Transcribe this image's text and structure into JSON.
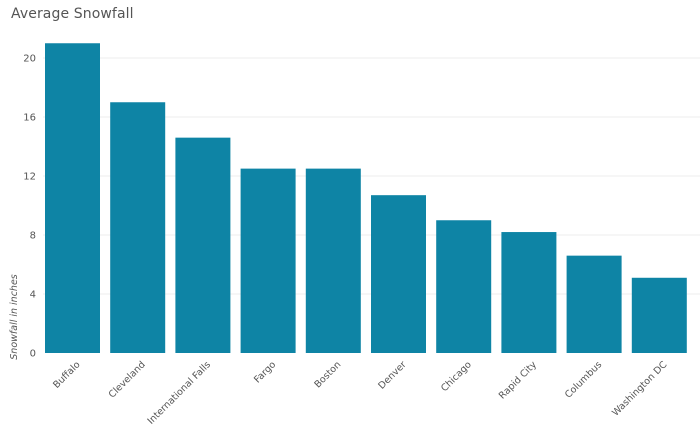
{
  "chart_data": {
    "type": "bar",
    "title": "Average Snowfall",
    "xlabel": "",
    "ylabel": "Snowfall in inches",
    "categories": [
      "Buffalo",
      "Cleveland",
      "International Falls",
      "Fargo",
      "Boston",
      "Denver",
      "Chicago",
      "Rapid City",
      "Columbus",
      "Washington DC"
    ],
    "values": [
      21.0,
      17.0,
      14.6,
      12.5,
      12.5,
      10.7,
      9.0,
      8.2,
      6.6,
      5.1
    ],
    "ylim": [
      0,
      22
    ],
    "yticks": [
      0,
      4,
      8,
      12,
      16,
      20
    ],
    "grid": true,
    "color": "#0e84a5"
  }
}
